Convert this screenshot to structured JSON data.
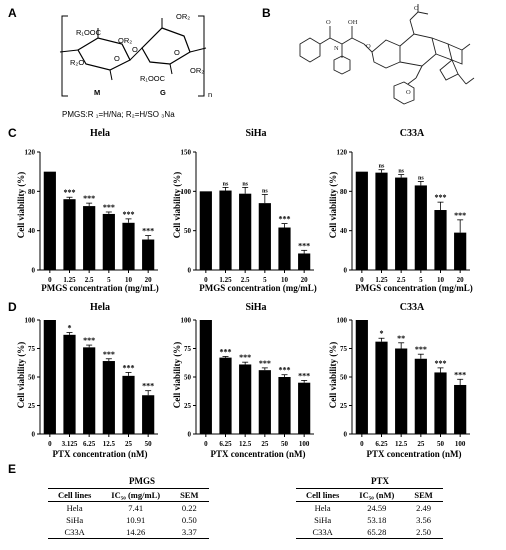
{
  "panels": {
    "a": "A",
    "b": "B",
    "c": "C",
    "d": "D",
    "e": "E"
  },
  "structure_a": {
    "m_label": "M",
    "g_label": "G",
    "n_label": "n",
    "r1ooc_top": "R₁OOC",
    "r1ooc_bottom": "R₁OOC",
    "or2_m": "OR₂",
    "r2o_m": "R₂O",
    "or2_g_top": "OR₂",
    "or2_g": "OR₂",
    "o_m": "O",
    "o_g": "O",
    "o_link": "O",
    "caption": "PMGS:R ₁=H/Na;   R₂=H/SO ₃Na"
  },
  "chart_data": [
    {
      "type": "bar",
      "title": "Hela",
      "xlabel": "PMGS concentration (mg/mL)",
      "ylabel": "Cell viability (%)",
      "categories": [
        "0",
        "1.25",
        "2.5",
        "5",
        "10",
        "20"
      ],
      "values": [
        100,
        72,
        65,
        57,
        48,
        31
      ],
      "errors": [
        0,
        2,
        3,
        2,
        4,
        4
      ],
      "annotations": [
        "",
        "***",
        "***",
        "***",
        "***",
        "***"
      ],
      "ylim": [
        0,
        120
      ],
      "yticks": [
        0,
        40,
        80,
        120
      ]
    },
    {
      "type": "bar",
      "title": "SiHa",
      "xlabel": "PMGS concentration (mg/mL)",
      "ylabel": "Cell viability (%)",
      "categories": [
        "0",
        "1.25",
        "2.5",
        "5",
        "10",
        "20"
      ],
      "values": [
        100,
        101,
        97,
        85,
        54,
        21
      ],
      "errors": [
        0,
        4,
        8,
        11,
        5,
        4
      ],
      "annotations": [
        "",
        "ns",
        "ns",
        "ns",
        "***",
        "***"
      ],
      "ylim": [
        0,
        150
      ],
      "yticks": [
        0,
        50,
        100,
        150
      ]
    },
    {
      "type": "bar",
      "title": "C33A",
      "xlabel": "PMGS concentration (mg/mL)",
      "ylabel": "Cell viability (%)",
      "categories": [
        "0",
        "1.25",
        "2.5",
        "5",
        "10",
        "20"
      ],
      "values": [
        100,
        99,
        94,
        86,
        61,
        38
      ],
      "errors": [
        0,
        3,
        3,
        4,
        8,
        13
      ],
      "annotations": [
        "",
        "ns",
        "ns",
        "ns",
        "***",
        "***"
      ],
      "ylim": [
        0,
        120
      ],
      "yticks": [
        0,
        40,
        80,
        120
      ]
    },
    {
      "type": "bar",
      "title": "Hela",
      "xlabel": "PTX concentration (nM)",
      "ylabel": "Cell viability (%)",
      "categories": [
        "0",
        "3.125",
        "6.25",
        "12.5",
        "25",
        "50"
      ],
      "values": [
        100,
        87,
        76,
        64,
        51,
        34
      ],
      "errors": [
        0,
        2,
        2,
        2,
        3,
        4
      ],
      "annotations": [
        "",
        "*",
        "***",
        "***",
        "***",
        "***"
      ],
      "ylim": [
        0,
        100
      ],
      "yticks": [
        0,
        25,
        50,
        75,
        100
      ]
    },
    {
      "type": "bar",
      "title": "SiHa",
      "xlabel": "PTX concentration (nM)",
      "ylabel": "Cell viability (%)",
      "categories": [
        "0",
        "6.25",
        "12.5",
        "25",
        "50",
        "100"
      ],
      "values": [
        100,
        67,
        61,
        56,
        50,
        45
      ],
      "errors": [
        0,
        1,
        2,
        2,
        2,
        2
      ],
      "annotations": [
        "",
        "***",
        "***",
        "***",
        "***",
        "***"
      ],
      "ylim": [
        0,
        100
      ],
      "yticks": [
        0,
        25,
        50,
        75,
        100
      ]
    },
    {
      "type": "bar",
      "title": "C33A",
      "xlabel": "PTX concentration (nM)",
      "ylabel": "Cell viability (%)",
      "categories": [
        "0",
        "6.25",
        "12.5",
        "25",
        "50",
        "100"
      ],
      "values": [
        100,
        81,
        75,
        66,
        54,
        43
      ],
      "errors": [
        0,
        3,
        5,
        4,
        4,
        5
      ],
      "annotations": [
        "",
        "*",
        "**",
        "***",
        "***",
        "***"
      ],
      "ylim": [
        0,
        100
      ],
      "yticks": [
        0,
        25,
        50,
        75,
        100
      ]
    }
  ],
  "tables": {
    "pmgs": {
      "title": "PMGS",
      "headers": [
        "Cell lines",
        "IC₅₀ (mg/mL)",
        "SEM"
      ],
      "rows": [
        [
          "Hela",
          "7.41",
          "0.22"
        ],
        [
          "SiHa",
          "10.91",
          "0.50"
        ],
        [
          "C33A",
          "14.26",
          "3.37"
        ]
      ]
    },
    "ptx": {
      "title": "PTX",
      "headers": [
        "Cell lines",
        "IC₅₀ (nM)",
        "SEM"
      ],
      "rows": [
        [
          "Hela",
          "24.59",
          "2.49"
        ],
        [
          "SiHa",
          "53.18",
          "3.56"
        ],
        [
          "C33A",
          "65.28",
          "2.50"
        ]
      ]
    }
  }
}
